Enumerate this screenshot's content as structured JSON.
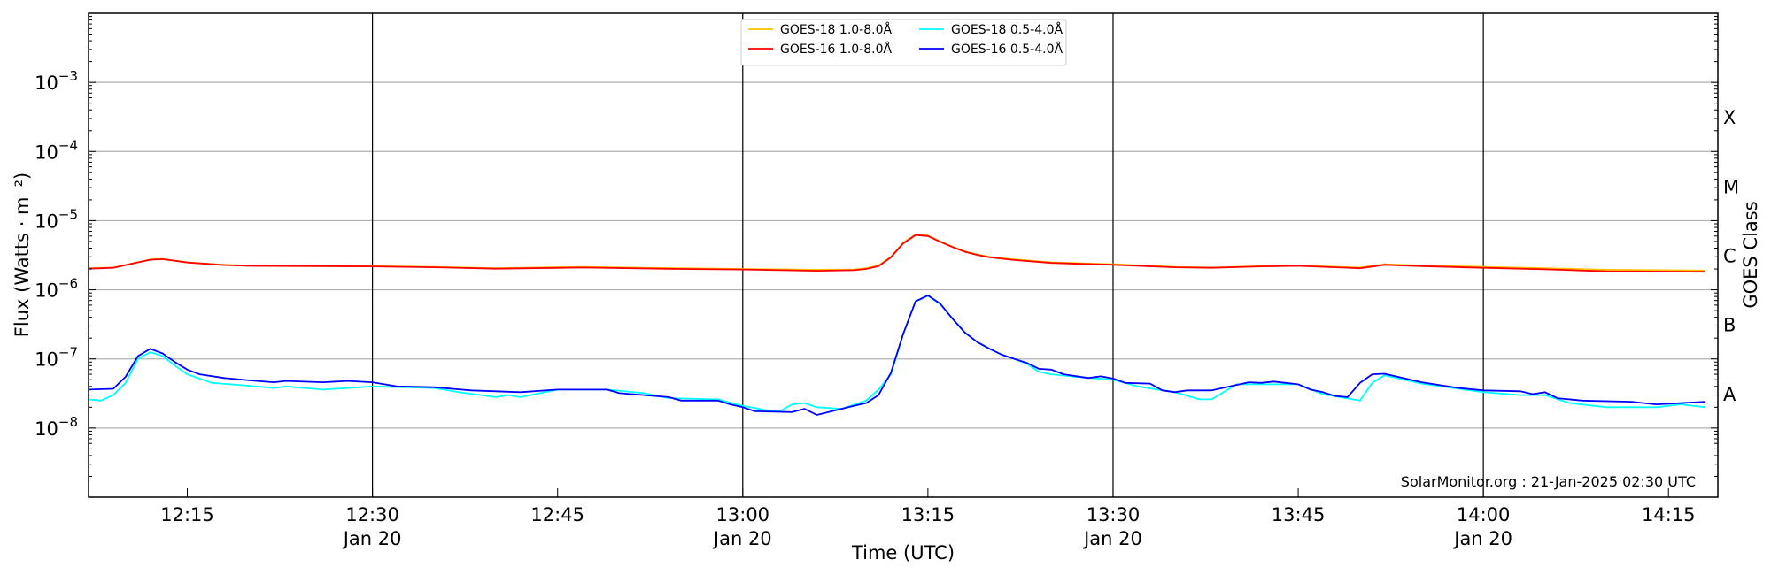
{
  "chart_data": {
    "type": "line",
    "title": "",
    "xlabel": "Time (UTC)",
    "ylabel": "Flux (Watts · m⁻²)",
    "ylabel_right": "GOES Class",
    "yscale": "log",
    "ylim": [
      1e-09,
      0.01
    ],
    "xlim": [
      "12:07",
      "14:19"
    ],
    "grid": true,
    "legend_position": "top-center",
    "y_ticks": [
      {
        "value": 0.001,
        "base": "10",
        "exp": "−3"
      },
      {
        "value": 0.0001,
        "base": "10",
        "exp": "−4"
      },
      {
        "value": 1e-05,
        "base": "10",
        "exp": "−5"
      },
      {
        "value": 1e-06,
        "base": "10",
        "exp": "−6"
      },
      {
        "value": 1e-07,
        "base": "10",
        "exp": "−7"
      },
      {
        "value": 1e-08,
        "base": "10",
        "exp": "−8"
      }
    ],
    "class_labels": [
      {
        "label": "X",
        "value": 0.000316
      },
      {
        "label": "M",
        "value": 3.16e-05
      },
      {
        "label": "C",
        "value": 3.16e-06
      },
      {
        "label": "B",
        "value": 3.16e-07
      },
      {
        "label": "A",
        "value": 3.16e-08
      }
    ],
    "x_ticks": [
      {
        "time": "12:15",
        "label": "12:15",
        "date": ""
      },
      {
        "time": "12:30",
        "label": "12:30",
        "date": "Jan 20"
      },
      {
        "time": "12:45",
        "label": "12:45",
        "date": ""
      },
      {
        "time": "13:00",
        "label": "13:00",
        "date": "Jan 20"
      },
      {
        "time": "13:15",
        "label": "13:15",
        "date": ""
      },
      {
        "time": "13:30",
        "label": "13:30",
        "date": "Jan 20"
      },
      {
        "time": "13:45",
        "label": "13:45",
        "date": ""
      },
      {
        "time": "14:00",
        "label": "14:00",
        "date": "Jan 20"
      },
      {
        "time": "14:15",
        "label": "14:15",
        "date": ""
      }
    ],
    "series": [
      {
        "name": "GOES-18 1.0-8.0Å",
        "color": "#ffc000",
        "points": [
          [
            "12:07",
            2.05e-06
          ],
          [
            "12:09",
            2.1e-06
          ],
          [
            "12:11",
            2.5e-06
          ],
          [
            "12:12",
            2.75e-06
          ],
          [
            "12:13",
            2.8e-06
          ],
          [
            "12:15",
            2.5e-06
          ],
          [
            "12:18",
            2.3e-06
          ],
          [
            "12:20",
            2.25e-06
          ],
          [
            "12:30",
            2.2e-06
          ],
          [
            "12:35",
            2.15e-06
          ],
          [
            "12:40",
            2.05e-06
          ],
          [
            "12:47",
            2.15e-06
          ],
          [
            "12:55",
            2.05e-06
          ],
          [
            "13:00",
            2e-06
          ],
          [
            "13:06",
            1.95e-06
          ],
          [
            "13:09",
            1.97e-06
          ],
          [
            "13:10",
            2.05e-06
          ],
          [
            "13:11",
            2.25e-06
          ],
          [
            "13:12",
            3e-06
          ],
          [
            "13:13",
            4.8e-06
          ],
          [
            "13:14",
            6.3e-06
          ],
          [
            "13:15",
            6.1e-06
          ],
          [
            "13:16",
            5e-06
          ],
          [
            "13:17",
            4.2e-06
          ],
          [
            "13:18",
            3.6e-06
          ],
          [
            "13:19",
            3.25e-06
          ],
          [
            "13:20",
            3e-06
          ],
          [
            "13:22",
            2.75e-06
          ],
          [
            "13:25",
            2.5e-06
          ],
          [
            "13:30",
            2.35e-06
          ],
          [
            "13:35",
            2.15e-06
          ],
          [
            "13:38",
            2.1e-06
          ],
          [
            "13:42",
            2.2e-06
          ],
          [
            "13:45",
            2.25e-06
          ],
          [
            "13:50",
            2.1e-06
          ],
          [
            "13:52",
            2.35e-06
          ],
          [
            "13:55",
            2.25e-06
          ],
          [
            "14:00",
            2.15e-06
          ],
          [
            "14:05",
            2.05e-06
          ],
          [
            "14:10",
            1.95e-06
          ],
          [
            "14:18",
            1.9e-06
          ]
        ]
      },
      {
        "name": "GOES-16 1.0-8.0Å",
        "color": "#ff0000",
        "points": [
          [
            "12:07",
            2.02e-06
          ],
          [
            "12:09",
            2.08e-06
          ],
          [
            "12:11",
            2.5e-06
          ],
          [
            "12:12",
            2.72e-06
          ],
          [
            "12:13",
            2.78e-06
          ],
          [
            "12:15",
            2.48e-06
          ],
          [
            "12:18",
            2.28e-06
          ],
          [
            "12:20",
            2.22e-06
          ],
          [
            "12:30",
            2.18e-06
          ],
          [
            "12:35",
            2.12e-06
          ],
          [
            "12:40",
            2.02e-06
          ],
          [
            "12:47",
            2.1e-06
          ],
          [
            "12:55",
            2e-06
          ],
          [
            "13:00",
            1.97e-06
          ],
          [
            "13:06",
            1.88e-06
          ],
          [
            "13:09",
            1.92e-06
          ],
          [
            "13:10",
            2e-06
          ],
          [
            "13:11",
            2.2e-06
          ],
          [
            "13:12",
            2.95e-06
          ],
          [
            "13:13",
            4.7e-06
          ],
          [
            "13:14",
            6.2e-06
          ],
          [
            "13:15",
            6e-06
          ],
          [
            "13:16",
            4.95e-06
          ],
          [
            "13:17",
            4.15e-06
          ],
          [
            "13:18",
            3.55e-06
          ],
          [
            "13:19",
            3.2e-06
          ],
          [
            "13:20",
            2.95e-06
          ],
          [
            "13:22",
            2.7e-06
          ],
          [
            "13:25",
            2.45e-06
          ],
          [
            "13:30",
            2.3e-06
          ],
          [
            "13:35",
            2.12e-06
          ],
          [
            "13:38",
            2.08e-06
          ],
          [
            "13:42",
            2.18e-06
          ],
          [
            "13:45",
            2.22e-06
          ],
          [
            "13:50",
            2.05e-06
          ],
          [
            "13:52",
            2.3e-06
          ],
          [
            "13:55",
            2.2e-06
          ],
          [
            "14:00",
            2.08e-06
          ],
          [
            "14:05",
            1.98e-06
          ],
          [
            "14:10",
            1.85e-06
          ],
          [
            "14:18",
            1.82e-06
          ]
        ]
      },
      {
        "name": "GOES-18 0.5-4.0Å",
        "color": "#00ffff",
        "points": [
          [
            "12:07",
            2.6e-08
          ],
          [
            "12:08",
            2.5e-08
          ],
          [
            "12:09",
            3e-08
          ],
          [
            "12:10",
            4.5e-08
          ],
          [
            "12:11",
            1e-07
          ],
          [
            "12:12",
            1.25e-07
          ],
          [
            "12:13",
            1.1e-07
          ],
          [
            "12:14",
            8e-08
          ],
          [
            "12:15",
            6e-08
          ],
          [
            "12:17",
            4.5e-08
          ],
          [
            "12:20",
            4.1e-08
          ],
          [
            "12:22",
            3.8e-08
          ],
          [
            "12:23",
            4e-08
          ],
          [
            "12:26",
            3.6e-08
          ],
          [
            "12:30",
            4e-08
          ],
          [
            "12:35",
            3.8e-08
          ],
          [
            "12:37",
            3.3e-08
          ],
          [
            "12:40",
            2.8e-08
          ],
          [
            "12:41",
            3e-08
          ],
          [
            "12:42",
            2.8e-08
          ],
          [
            "12:45",
            3.6e-08
          ],
          [
            "12:49",
            3.6e-08
          ],
          [
            "12:52",
            3.2e-08
          ],
          [
            "12:54",
            2.7e-08
          ],
          [
            "12:58",
            2.6e-08
          ],
          [
            "13:00",
            2.1e-08
          ],
          [
            "13:02",
            1.8e-08
          ],
          [
            "13:03",
            1.75e-08
          ],
          [
            "13:04",
            2.2e-08
          ],
          [
            "13:05",
            2.3e-08
          ],
          [
            "13:06",
            2e-08
          ],
          [
            "13:08",
            1.9e-08
          ],
          [
            "13:10",
            2.5e-08
          ],
          [
            "13:11",
            3.6e-08
          ],
          [
            "13:12",
            6e-08
          ],
          [
            "13:13",
            2.3e-07
          ],
          [
            "13:14",
            6.8e-07
          ],
          [
            "13:15",
            8.2e-07
          ],
          [
            "13:16",
            6.2e-07
          ],
          [
            "13:17",
            3.8e-07
          ],
          [
            "13:18",
            2.4e-07
          ],
          [
            "13:19",
            1.75e-07
          ],
          [
            "13:20",
            1.4e-07
          ],
          [
            "13:21",
            1.15e-07
          ],
          [
            "13:22",
            1e-07
          ],
          [
            "13:23",
            8.5e-08
          ],
          [
            "13:24",
            6.5e-08
          ],
          [
            "13:25",
            6e-08
          ],
          [
            "13:27",
            5.5e-08
          ],
          [
            "13:30",
            5e-08
          ],
          [
            "13:32",
            4e-08
          ],
          [
            "13:35",
            3.3e-08
          ],
          [
            "13:37",
            2.6e-08
          ],
          [
            "13:38",
            2.6e-08
          ],
          [
            "13:40",
            4.3e-08
          ],
          [
            "13:43",
            4.3e-08
          ],
          [
            "13:45",
            4.3e-08
          ],
          [
            "13:47",
            3.1e-08
          ],
          [
            "13:50",
            2.5e-08
          ],
          [
            "13:51",
            4.5e-08
          ],
          [
            "13:52",
            5.8e-08
          ],
          [
            "13:55",
            4.4e-08
          ],
          [
            "14:00",
            3.3e-08
          ],
          [
            "14:03",
            3e-08
          ],
          [
            "14:05",
            3e-08
          ],
          [
            "14:07",
            2.3e-08
          ],
          [
            "14:10",
            2e-08
          ],
          [
            "14:14",
            2e-08
          ],
          [
            "14:16",
            2.2e-08
          ],
          [
            "14:17",
            2.1e-08
          ],
          [
            "14:18",
            2e-08
          ]
        ]
      },
      {
        "name": "GOES-16 0.5-4.0Å",
        "color": "#0000ff",
        "points": [
          [
            "12:07",
            3.6e-08
          ],
          [
            "12:09",
            3.7e-08
          ],
          [
            "12:10",
            5.5e-08
          ],
          [
            "12:11",
            1.1e-07
          ],
          [
            "12:12",
            1.4e-07
          ],
          [
            "12:13",
            1.2e-07
          ],
          [
            "12:14",
            9e-08
          ],
          [
            "12:15",
            7e-08
          ],
          [
            "12:16",
            6e-08
          ],
          [
            "12:18",
            5.3e-08
          ],
          [
            "12:20",
            4.9e-08
          ],
          [
            "12:22",
            4.6e-08
          ],
          [
            "12:23",
            4.8e-08
          ],
          [
            "12:26",
            4.6e-08
          ],
          [
            "12:28",
            4.8e-08
          ],
          [
            "12:30",
            4.6e-08
          ],
          [
            "12:32",
            4e-08
          ],
          [
            "12:35",
            3.9e-08
          ],
          [
            "12:38",
            3.5e-08
          ],
          [
            "12:42",
            3.3e-08
          ],
          [
            "12:45",
            3.6e-08
          ],
          [
            "12:49",
            3.6e-08
          ],
          [
            "12:50",
            3.2e-08
          ],
          [
            "12:54",
            2.8e-08
          ],
          [
            "12:55",
            2.5e-08
          ],
          [
            "12:58",
            2.5e-08
          ],
          [
            "12:59",
            2.2e-08
          ],
          [
            "13:00",
            2e-08
          ],
          [
            "13:01",
            1.75e-08
          ],
          [
            "13:04",
            1.7e-08
          ],
          [
            "13:05",
            1.9e-08
          ],
          [
            "13:06",
            1.55e-08
          ],
          [
            "13:09",
            2.1e-08
          ],
          [
            "13:10",
            2.3e-08
          ],
          [
            "13:11",
            3e-08
          ],
          [
            "13:12",
            6.3e-08
          ],
          [
            "13:13",
            2.3e-07
          ],
          [
            "13:14",
            6.8e-07
          ],
          [
            "13:15",
            8.3e-07
          ],
          [
            "13:16",
            6.3e-07
          ],
          [
            "13:17",
            3.8e-07
          ],
          [
            "13:18",
            2.4e-07
          ],
          [
            "13:19",
            1.75e-07
          ],
          [
            "13:20",
            1.4e-07
          ],
          [
            "13:21",
            1.15e-07
          ],
          [
            "13:22",
            1e-07
          ],
          [
            "13:23",
            8.8e-08
          ],
          [
            "13:24",
            7.2e-08
          ],
          [
            "13:25",
            7e-08
          ],
          [
            "13:26",
            6e-08
          ],
          [
            "13:28",
            5.3e-08
          ],
          [
            "13:29",
            5.6e-08
          ],
          [
            "13:30",
            5.2e-08
          ],
          [
            "13:31",
            4.5e-08
          ],
          [
            "13:33",
            4.4e-08
          ],
          [
            "13:34",
            3.5e-08
          ],
          [
            "13:35",
            3.3e-08
          ],
          [
            "13:36",
            3.5e-08
          ],
          [
            "13:38",
            3.5e-08
          ],
          [
            "13:41",
            4.6e-08
          ],
          [
            "13:42",
            4.5e-08
          ],
          [
            "13:43",
            4.7e-08
          ],
          [
            "13:45",
            4.3e-08
          ],
          [
            "13:46",
            3.6e-08
          ],
          [
            "13:47",
            3.3e-08
          ],
          [
            "13:48",
            2.9e-08
          ],
          [
            "13:49",
            2.8e-08
          ],
          [
            "13:50",
            4.5e-08
          ],
          [
            "13:51",
            6e-08
          ],
          [
            "13:52",
            6.1e-08
          ],
          [
            "13:55",
            4.6e-08
          ],
          [
            "13:58",
            3.8e-08
          ],
          [
            "14:00",
            3.5e-08
          ],
          [
            "14:03",
            3.4e-08
          ],
          [
            "14:04",
            3.1e-08
          ],
          [
            "14:05",
            3.3e-08
          ],
          [
            "14:06",
            2.7e-08
          ],
          [
            "14:08",
            2.5e-08
          ],
          [
            "14:12",
            2.4e-08
          ],
          [
            "14:14",
            2.2e-08
          ],
          [
            "14:18",
            2.4e-08
          ]
        ]
      }
    ],
    "watermark": "SolarMonitor.org : 21-Jan-2025 02:30 UTC"
  }
}
